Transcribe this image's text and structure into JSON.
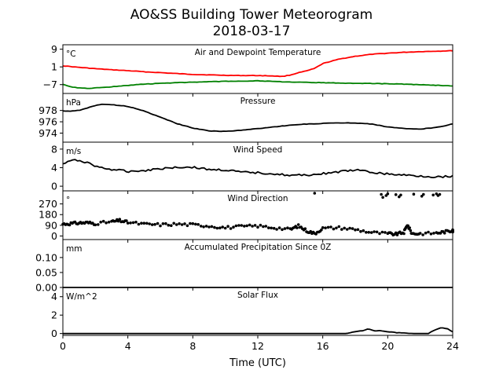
{
  "chart_data": {
    "type": "line",
    "title": "AO&SS Building Tower Meteorogram",
    "subtitle": "2018-03-17",
    "xlabel": "Time (UTC)",
    "xlim": [
      0,
      24
    ],
    "xticks": [
      0,
      4,
      8,
      12,
      16,
      20,
      24
    ],
    "grid": false,
    "panels": [
      {
        "label": "Air and Dewpoint Temperature",
        "unit": "°C",
        "ylim": [
          -11,
          11
        ],
        "yticks": [
          -7,
          1,
          9
        ],
        "ytick_labels": [
          "−7",
          "1",
          "9"
        ],
        "series": [
          {
            "color": "#ff0000",
            "style": "line",
            "x": [
              0,
              1,
              2,
              3,
              4,
              5,
              6,
              7,
              8,
              9,
              10,
              11,
              12,
              13,
              13.5,
              14,
              14.5,
              15,
              15.5,
              16,
              17,
              18,
              19,
              20,
              21,
              22,
              23,
              24
            ],
            "y": [
              1.5,
              0.8,
              0.2,
              -0.3,
              -0.7,
              -1.2,
              -1.6,
              -2.0,
              -2.4,
              -2.6,
              -2.8,
              -2.9,
              -2.9,
              -3.1,
              -3.3,
              -2.7,
              -1.6,
              -0.8,
              0.3,
              2.5,
              4.5,
              5.8,
              6.7,
              7.2,
              7.6,
              7.9,
              8.1,
              8.3
            ]
          },
          {
            "color": "#008000",
            "style": "line",
            "x": [
              0,
              0.5,
              1,
              1.5,
              2,
              3,
              4,
              5,
              6,
              7,
              8,
              9,
              10,
              11,
              12,
              13,
              14,
              15,
              16,
              17,
              18,
              19,
              20,
              21,
              22,
              23,
              24
            ],
            "y": [
              -6.8,
              -8.0,
              -8.5,
              -8.7,
              -8.5,
              -8.0,
              -7.3,
              -6.8,
              -6.4,
              -6.1,
              -5.9,
              -5.7,
              -5.5,
              -5.4,
              -5.3,
              -5.6,
              -5.9,
              -6.0,
              -6.1,
              -6.3,
              -6.4,
              -6.5,
              -6.6,
              -6.8,
              -7.0,
              -7.3,
              -7.6
            ]
          }
        ]
      },
      {
        "label": "Pressure",
        "unit": "hPa",
        "ylim": [
          972.4,
          981.0
        ],
        "yticks": [
          974,
          976,
          978
        ],
        "ytick_labels": [
          "974",
          "976",
          "978"
        ],
        "series": [
          {
            "color": "#000000",
            "style": "line",
            "x": [
              0,
              0.5,
              1,
              1.5,
              2,
              2.5,
              3,
              3.5,
              4,
              5,
              6,
              7,
              8,
              9,
              10,
              11,
              12,
              13,
              14,
              15,
              16,
              17,
              18,
              19,
              20,
              21,
              22,
              23,
              24
            ],
            "y": [
              977.9,
              977.9,
              978.0,
              978.4,
              978.9,
              979.1,
              979.0,
              978.9,
              978.7,
              977.9,
              976.8,
              975.7,
              974.9,
              974.4,
              974.3,
              974.5,
              974.8,
              975.1,
              975.4,
              975.6,
              975.7,
              975.8,
              975.8,
              975.6,
              975.1,
              974.8,
              974.7,
              975.0,
              975.6
            ]
          }
        ]
      },
      {
        "label": "Wind Speed",
        "unit": "m/s",
        "ylim": [
          -1.0,
          9.5
        ],
        "yticks": [
          0,
          4,
          8
        ],
        "ytick_labels": [
          "0",
          "4",
          "8"
        ],
        "series": [
          {
            "color": "#000000",
            "style": "line",
            "x": [
              0,
              0.5,
              1,
              1.5,
              2,
              3,
              4,
              5,
              6,
              7,
              8,
              9,
              10,
              11,
              12,
              13,
              14,
              15,
              16,
              17,
              18,
              19,
              20,
              21,
              22,
              23,
              24
            ],
            "y": [
              4.8,
              5.5,
              5.6,
              5.1,
              4.3,
              3.6,
              3.2,
              3.4,
              3.8,
              4.1,
              4.1,
              3.6,
              3.5,
              3.0,
              2.9,
              2.7,
              2.3,
              2.4,
              2.7,
              3.1,
              3.5,
              3.0,
              2.6,
              2.4,
              2.2,
              2.0,
              2.2
            ]
          }
        ]
      },
      {
        "label": "Wind Direction",
        "unit": "°",
        "ylim": [
          -30,
          380
        ],
        "yticks": [
          0,
          90,
          180,
          270
        ],
        "ytick_labels": [
          "0",
          "90",
          "180",
          "270"
        ],
        "series": [
          {
            "color": "#000000",
            "style": "dots",
            "x": [
              0,
              0.5,
              1,
              1.5,
              2,
              3,
              3.5,
              4,
              5,
              6,
              7,
              8,
              9,
              10,
              11,
              12,
              13,
              14,
              14.5,
              15,
              15.5,
              16,
              17,
              18,
              19,
              20,
              20.5,
              21,
              21.2,
              21.5,
              22,
              23,
              23.5,
              24
            ],
            "y": [
              100,
              105,
              110,
              112,
              105,
              120,
              130,
              115,
              100,
              95,
              100,
              95,
              85,
              70,
              80,
              85,
              70,
              55,
              85,
              45,
              20,
              65,
              70,
              55,
              30,
              20,
              15,
              30,
              95,
              20,
              20,
              25,
              35,
              45
            ]
          },
          {
            "color": "#000000",
            "style": "dots",
            "x": [
              15.5,
              19.6,
              19.7,
              19.9,
              20.0,
              20.5,
              20.7,
              20.8,
              21.6,
              22.1,
              22.2,
              22.8,
              23.0,
              23.1,
              23.2
            ],
            "y": [
              360,
              350,
              325,
              340,
              355,
              348,
              330,
              345,
              352,
              335,
              350,
              345,
              355,
              340,
              350
            ]
          }
        ]
      },
      {
        "label": "Accumulated Precipitation Since 0Z",
        "unit": "mm",
        "ylim": [
          0.0,
          0.16
        ],
        "yticks": [
          0.0,
          0.05,
          0.1
        ],
        "ytick_labels": [
          "0.00",
          "0.05",
          "0.10"
        ],
        "series": [
          {
            "color": "#000000",
            "style": "line",
            "x": [
              0,
              24
            ],
            "y": [
              0.0,
              0.0
            ]
          }
        ]
      },
      {
        "label": "Solar Flux",
        "unit": "W/m^2",
        "ylim": [
          -0.2,
          5.0
        ],
        "yticks": [
          0,
          2,
          4
        ],
        "ytick_labels": [
          "0",
          "2",
          "4"
        ],
        "series": [
          {
            "color": "#000000",
            "style": "line",
            "x": [
              0,
              17.5,
              18.0,
              18.5,
              18.8,
              19.2,
              19.6,
              20.0,
              20.5,
              21.5,
              22.5,
              22.9,
              23.3,
              23.7,
              24
            ],
            "y": [
              0.0,
              0.0,
              0.2,
              0.3,
              0.5,
              0.3,
              0.3,
              0.2,
              0.1,
              0.0,
              0.0,
              0.4,
              0.65,
              0.5,
              0.2
            ]
          }
        ]
      }
    ]
  }
}
